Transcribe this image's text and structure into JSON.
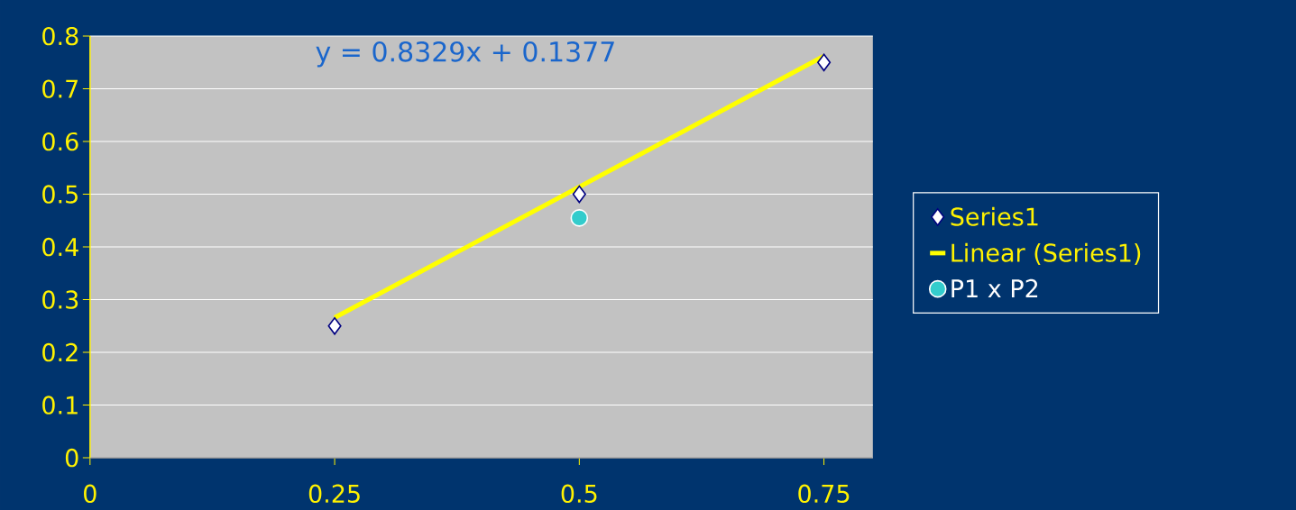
{
  "chart_data": {
    "type": "scatter",
    "x": [
      0.25,
      0.5,
      0.75
    ],
    "series": [
      {
        "name": "Series1",
        "type": "scatter",
        "marker": "diamond",
        "color": "#ffffff",
        "values": [
          0.25,
          0.5,
          0.75
        ]
      },
      {
        "name": "Linear (Series1)",
        "type": "line",
        "marker": "none",
        "color": "#ffff00",
        "x": [
          0.25,
          0.75
        ],
        "values": [
          0.266,
          0.762
        ]
      },
      {
        "name": "P1 x P2",
        "type": "scatter",
        "marker": "circle",
        "color": "#33cccc",
        "x": [
          0.5
        ],
        "values": [
          0.455
        ]
      }
    ],
    "xlim": [
      0,
      0.8
    ],
    "xticks": [
      0,
      0.25,
      0.5,
      0.75
    ],
    "ylim": [
      0,
      0.8
    ],
    "yticks": [
      0,
      0.1,
      0.2,
      0.3,
      0.4,
      0.5,
      0.6,
      0.7,
      0.8
    ],
    "grid": "y",
    "legend": "right",
    "annotations": [
      "y = 0.8329x + 0.1377"
    ]
  }
}
